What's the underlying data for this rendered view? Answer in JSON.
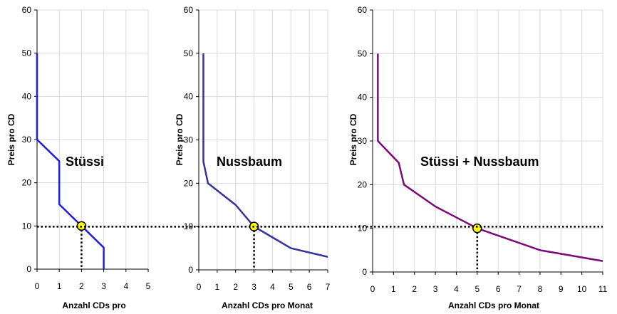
{
  "reference_price": 10,
  "chart_data": [
    {
      "type": "line",
      "label": "Stüssi",
      "xlabel": "Anzahl CDs pro",
      "ylabel": "Preis pro CD",
      "xlim": [
        0,
        5
      ],
      "ylim": [
        0,
        60
      ],
      "xticks": [
        0,
        1,
        2,
        3,
        4,
        5
      ],
      "yticks": [
        0,
        10,
        20,
        30,
        40,
        50,
        60
      ],
      "color": "#1f1fe0",
      "series": [
        {
          "x": [
            0,
            0,
            1,
            1,
            2,
            3,
            3
          ],
          "y": [
            50,
            30,
            25,
            15,
            10,
            5,
            0
          ]
        }
      ],
      "marker": {
        "x": 2,
        "y": 10
      }
    },
    {
      "type": "line",
      "label": "Nussbaum",
      "xlabel": "Anzahl CDs pro Monat",
      "ylabel": "Preis pro CD",
      "xlim": [
        0,
        7
      ],
      "ylim": [
        0,
        60
      ],
      "xticks": [
        0,
        1,
        2,
        3,
        4,
        5,
        6,
        7
      ],
      "yticks": [
        0,
        10,
        20,
        30,
        40,
        50,
        60
      ],
      "color": "#33339a",
      "series": [
        {
          "x": [
            0.25,
            0.25,
            0.5,
            2,
            3,
            4,
            5,
            7
          ],
          "y": [
            50,
            25,
            20,
            15,
            10,
            7.5,
            5,
            3
          ]
        }
      ],
      "marker": {
        "x": 3,
        "y": 10
      }
    },
    {
      "type": "line",
      "label": "Stüssi + Nussbaum",
      "xlabel": "Anzahl CDs pro Monat",
      "ylabel": "Preis pro CD",
      "xlim": [
        0,
        11
      ],
      "ylim": [
        0,
        60
      ],
      "xticks": [
        0,
        1,
        2,
        3,
        4,
        5,
        6,
        7,
        8,
        9,
        10,
        11
      ],
      "yticks": [
        0,
        10,
        20,
        30,
        40,
        50,
        60
      ],
      "color": "#7b0a7b",
      "series": [
        {
          "x": [
            0.25,
            0.25,
            1.25,
            1.5,
            3,
            5,
            8,
            11
          ],
          "y": [
            50,
            30,
            25,
            20,
            15,
            10,
            5,
            2.5
          ]
        }
      ],
      "marker": {
        "x": 5,
        "y": 10
      }
    }
  ]
}
